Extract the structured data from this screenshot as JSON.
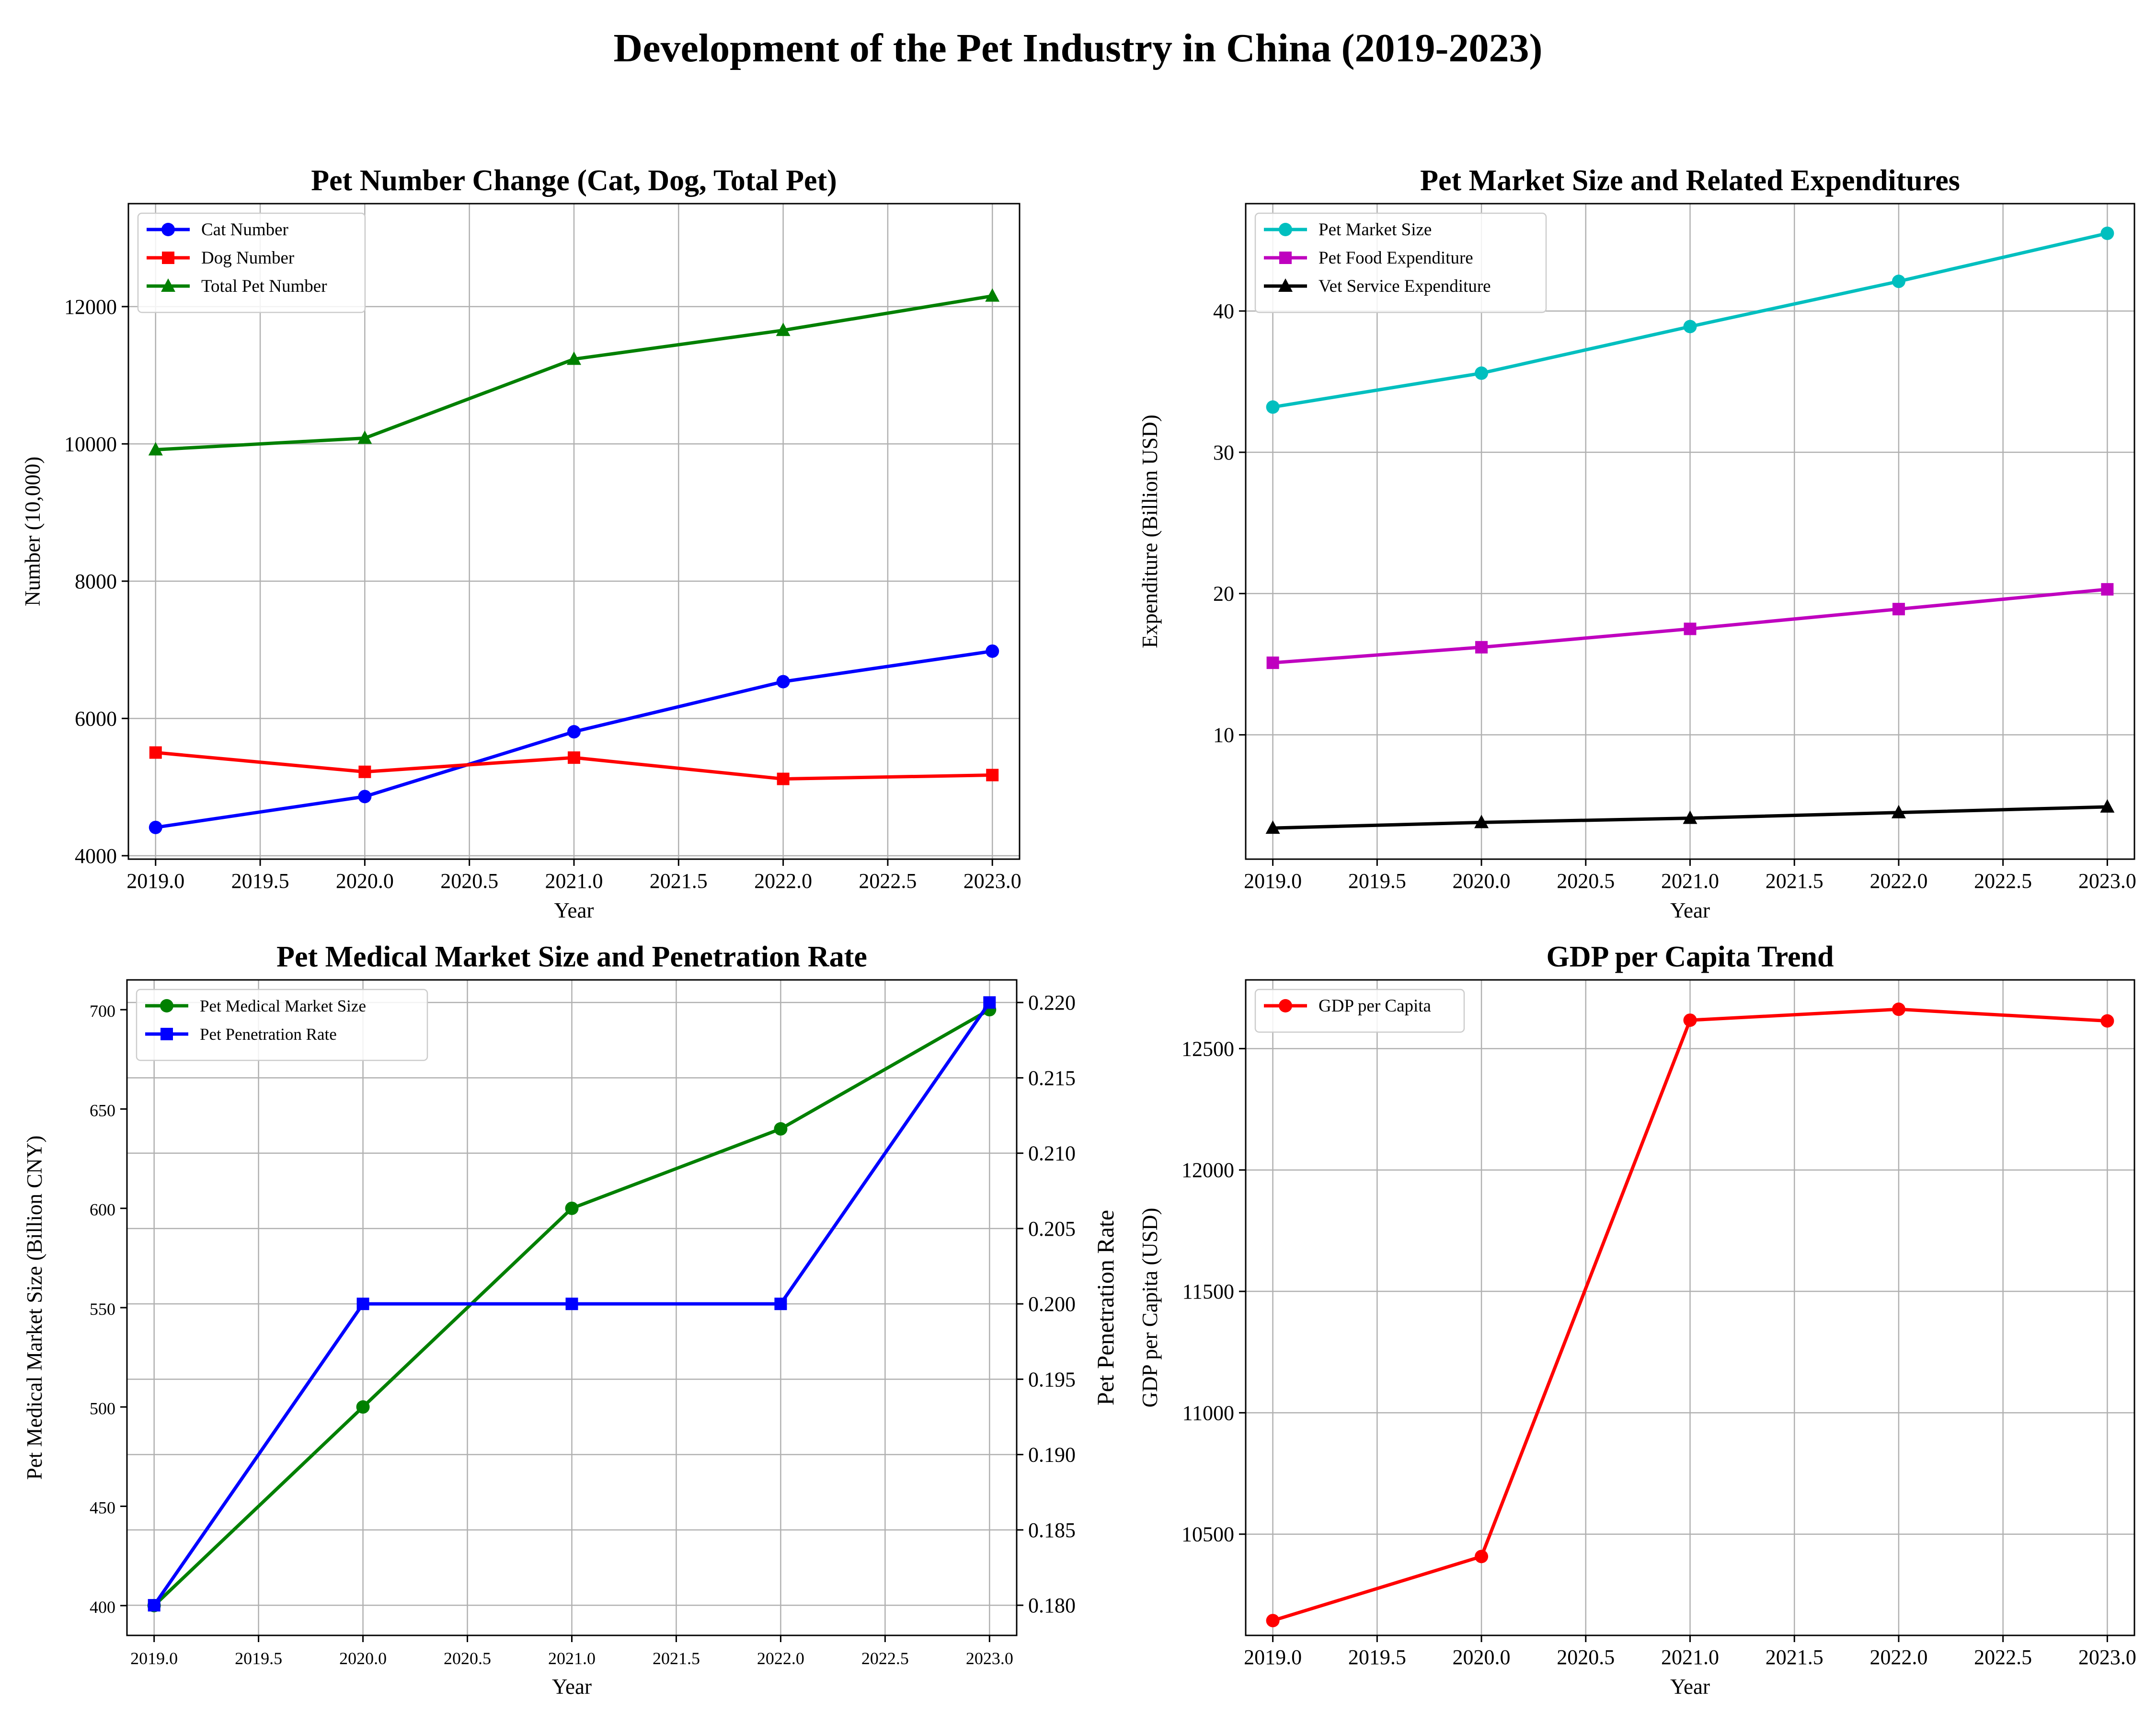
{
  "suptitle": "Development of the Pet Industry in China (2019-2023)",
  "chart_data": [
    {
      "type": "line",
      "title": "Pet Number Change (Cat, Dog, Total Pet)",
      "xlabel": "Year",
      "ylabel": "Number (10,000)",
      "x": [
        2019,
        2020,
        2021,
        2022,
        2023
      ],
      "xticks": [
        "2019.0",
        "2019.5",
        "2020.0",
        "2020.5",
        "2021.0",
        "2021.5",
        "2022.0",
        "2022.5",
        "2023.0"
      ],
      "yticks": [
        "4000",
        "6000",
        "8000",
        "10000",
        "12000"
      ],
      "ylim": [
        3950,
        13500
      ],
      "grid": true,
      "legend": "upper-left",
      "series": [
        {
          "name": "Cat Number",
          "values": [
            4412,
            4862,
            5806,
            6536,
            6980
          ],
          "color": "#0000ff",
          "marker": "circle"
        },
        {
          "name": "Dog Number",
          "values": [
            5503,
            5222,
            5429,
            5119,
            5175
          ],
          "color": "#ff0000",
          "marker": "square"
        },
        {
          "name": "Total Pet Number",
          "values": [
            9915,
            10084,
            11235,
            11655,
            12155
          ],
          "color": "#008000",
          "marker": "triangle"
        }
      ]
    },
    {
      "type": "line",
      "title": "Pet Market Size and Related Expenditures",
      "xlabel": "Year",
      "ylabel": "Expenditure (Billion USD)",
      "x": [
        2019,
        2020,
        2021,
        2022,
        2023
      ],
      "xticks": [
        "2019.0",
        "2019.5",
        "2020.0",
        "2020.5",
        "2021.0",
        "2021.5",
        "2022.0",
        "2022.5",
        "2023.0"
      ],
      "yticks": [
        "10",
        "20",
        "30",
        "40"
      ],
      "ylim": [
        1.2,
        47.6
      ],
      "grid": true,
      "legend": "upper-left",
      "series": [
        {
          "name": "Pet Market Size",
          "values": [
            33.2,
            35.6,
            38.9,
            42.1,
            45.5
          ],
          "color": "#00bfbf",
          "marker": "circle"
        },
        {
          "name": "Pet Food Expenditure",
          "values": [
            15.1,
            16.2,
            17.5,
            18.9,
            20.3
          ],
          "color": "#bf00bf",
          "marker": "square"
        },
        {
          "name": "Vet Service Expenditure",
          "values": [
            3.4,
            3.8,
            4.1,
            4.5,
            4.9
          ],
          "color": "#000000",
          "marker": "triangle"
        }
      ]
    },
    {
      "type": "line",
      "title": "Pet Medical Market Size and Penetration Rate",
      "xlabel": "Year",
      "ylabel": "Pet Medical Market Size (Billion CNY)",
      "y2label": "Pet Penetration Rate",
      "x": [
        2019,
        2020,
        2021,
        2022,
        2023
      ],
      "xticks": [
        "2019.0",
        "2019.5",
        "2020.0",
        "2020.5",
        "2021.0",
        "2021.5",
        "2022.0",
        "2022.5",
        "2023.0"
      ],
      "yticks": [
        "400",
        "450",
        "500",
        "550",
        "600",
        "650",
        "700"
      ],
      "ylim": [
        385,
        715
      ],
      "y2ticks": [
        "0.180",
        "0.185",
        "0.190",
        "0.195",
        "0.200",
        "0.205",
        "0.210",
        "0.215",
        "0.220"
      ],
      "y2lim": [
        0.178,
        0.2215
      ],
      "grid": true,
      "legend": "upper-left",
      "series": [
        {
          "name": "Pet Medical Market Size",
          "values": [
            400,
            500,
            600,
            640,
            700
          ],
          "color": "#008000",
          "marker": "circle",
          "axis": "left"
        },
        {
          "name": "Pet Penetration Rate",
          "values": [
            0.18,
            0.2,
            0.2,
            0.2,
            0.22
          ],
          "color": "#0000ff",
          "marker": "square",
          "axis": "right"
        }
      ]
    },
    {
      "type": "line",
      "title": "GDP per Capita Trend",
      "xlabel": "Year",
      "ylabel": "GDP per Capita (USD)",
      "x": [
        2019,
        2020,
        2021,
        2022,
        2023
      ],
      "xticks": [
        "2019.0",
        "2019.5",
        "2020.0",
        "2020.5",
        "2021.0",
        "2021.5",
        "2022.0",
        "2022.5",
        "2023.0"
      ],
      "yticks": [
        "10500",
        "11000",
        "11500",
        "12000",
        "12500"
      ],
      "ylim": [
        10083,
        12783
      ],
      "grid": true,
      "legend": "upper-left",
      "series": [
        {
          "name": "GDP per Capita",
          "values": [
            10144,
            10408,
            12617,
            12662,
            12614
          ],
          "color": "#ff0000",
          "marker": "circle"
        }
      ]
    }
  ]
}
